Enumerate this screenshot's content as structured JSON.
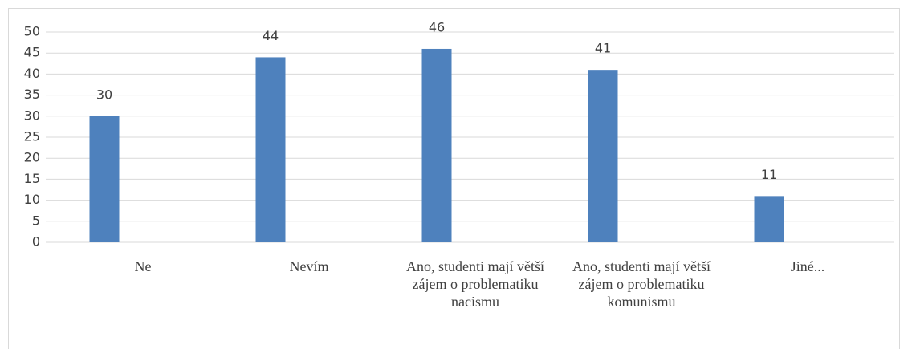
{
  "chart_data": {
    "type": "bar",
    "categories": [
      "Ne",
      "Nevím",
      "Ano, studenti mají větší zájem o problematiku nacismu",
      "Ano, studenti mají větší zájem o problematiku komunismu",
      "Jiné..."
    ],
    "values": [
      30,
      44,
      46,
      41,
      11
    ],
    "color": "#4e81bd",
    "ylim": [
      0,
      50
    ],
    "yticks": [
      0,
      5,
      10,
      15,
      20,
      25,
      30,
      35,
      40,
      45,
      50
    ],
    "grid": true
  }
}
